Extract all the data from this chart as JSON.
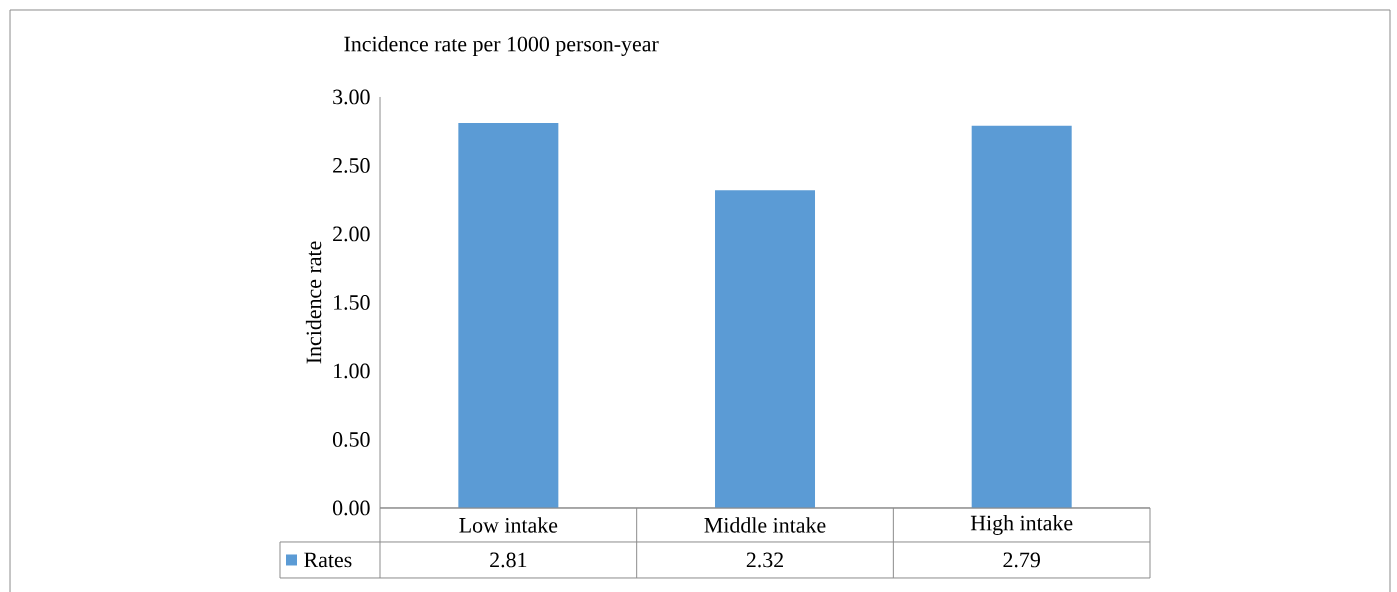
{
  "chart_data": {
    "type": "bar",
    "title": "Incidence rate per 1000 person-year",
    "ylabel": "Incidence rate",
    "categories": [
      "Low intake",
      "Middle intake",
      "High intake"
    ],
    "series": [
      {
        "name": "Rates",
        "color": "#5b9bd5",
        "values": [
          2.81,
          2.32,
          2.79
        ]
      }
    ],
    "ylim": [
      0,
      3
    ],
    "yticks": [
      {
        "value": 0,
        "label": "0.00"
      },
      {
        "value": 0.5,
        "label": "0.50"
      },
      {
        "value": 1,
        "label": "1.00"
      },
      {
        "value": 1.5,
        "label": "1.50"
      },
      {
        "value": 2,
        "label": "2.00"
      },
      {
        "value": 2.5,
        "label": "2.50"
      },
      {
        "value": 3,
        "label": "3.00"
      }
    ],
    "data_labels": true,
    "legend": "bottom",
    "grid": false
  }
}
